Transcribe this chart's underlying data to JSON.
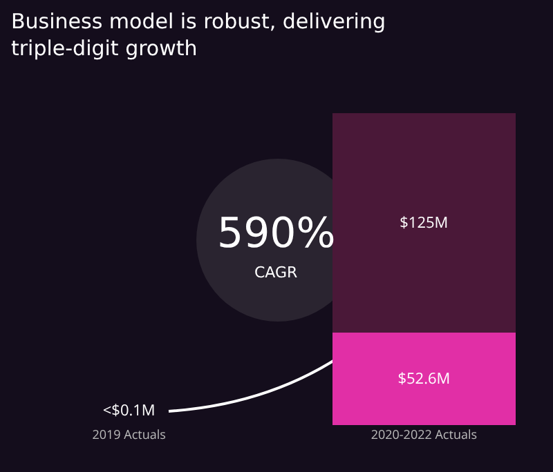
{
  "chart_data": {
    "type": "bar",
    "title": "Business model is robust, delivering triple-digit growth",
    "categories": [
      "2019 Actuals",
      "2020-2022 Actuals"
    ],
    "stacked": true,
    "series": [
      {
        "colors": [
          "#b52ad6",
          "#e12fa6"
        ],
        "values": [
          0.1,
          52.6
        ],
        "value_labels": [
          "<$0.1M",
          "$52.6M"
        ]
      },
      {
        "color": "#4a1838",
        "values": [
          null,
          125
        ],
        "value_labels": [
          null,
          "$125M"
        ]
      }
    ],
    "annotations": [
      "590%",
      "CAGR"
    ]
  }
}
